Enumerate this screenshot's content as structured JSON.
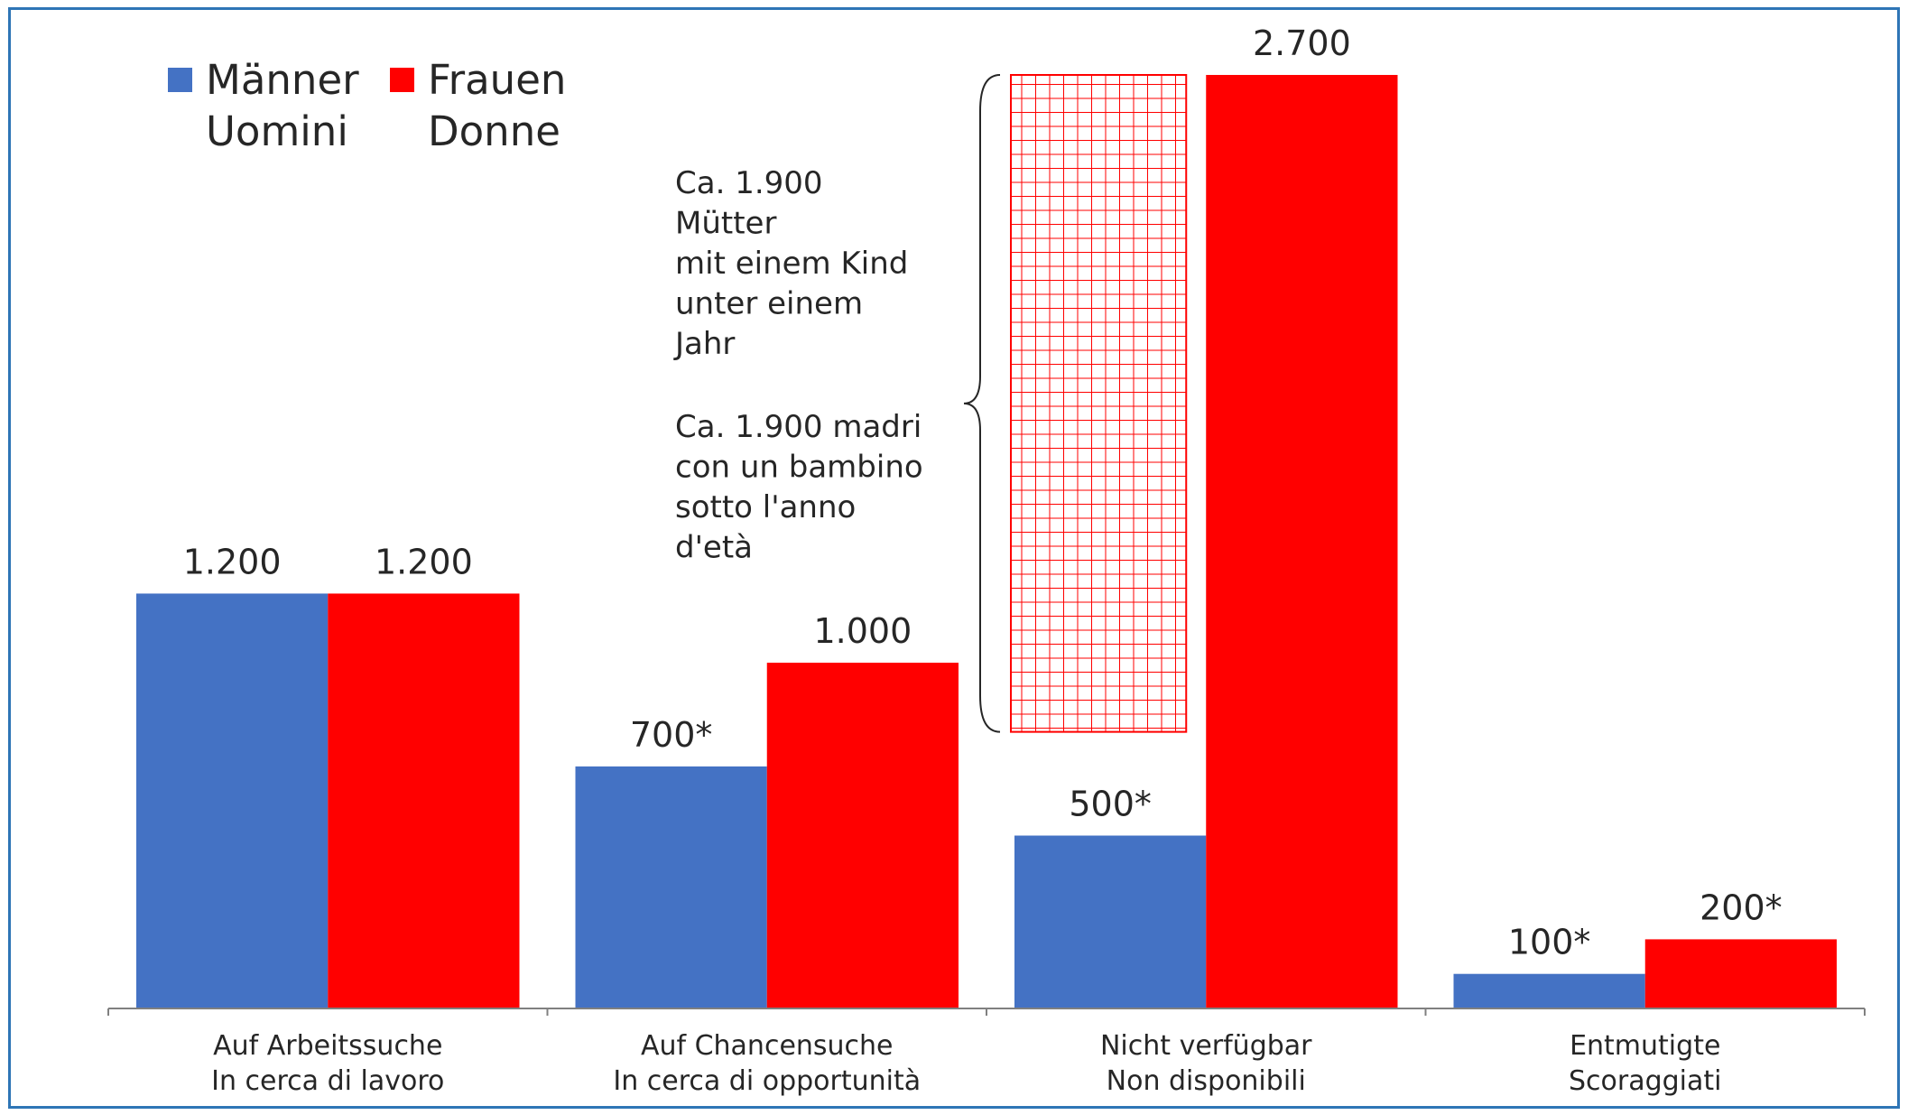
{
  "chart_data": {
    "type": "bar",
    "categories": [
      [
        "Auf Arbeitssuche",
        "In cerca di lavoro"
      ],
      [
        "Auf Chancensuche",
        "In cerca di opportunità"
      ],
      [
        "Nicht verfügbar",
        "Non disponibili"
      ],
      [
        "Entmutigte",
        "Scoraggiati"
      ]
    ],
    "series": [
      {
        "name": [
          "Männer",
          "Uomini"
        ],
        "color": "#4472c4",
        "values": [
          1200,
          700,
          500,
          100
        ],
        "labels": [
          "1.200",
          "700*",
          "500*",
          "100*"
        ]
      },
      {
        "name": [
          "Frauen",
          "Donne"
        ],
        "color": "#ff0000",
        "values": [
          1200,
          1000,
          2700,
          200
        ],
        "labels": [
          "1.200",
          "1.000",
          "2.700",
          "200*"
        ]
      }
    ],
    "ylim": [
      0,
      2700
    ],
    "grid": false,
    "legend_position": "top-left",
    "highlight": {
      "category_index": 2,
      "value": 1900,
      "pattern": "grid",
      "color": "#ff0000"
    },
    "annotation_de": [
      "Ca. 1.900",
      "Mütter",
      "mit einem Kind",
      "unter einem",
      "Jahr"
    ],
    "annotation_it": [
      "Ca. 1.900 madri",
      "con un bambino",
      "sotto l'anno",
      "d'età"
    ]
  }
}
